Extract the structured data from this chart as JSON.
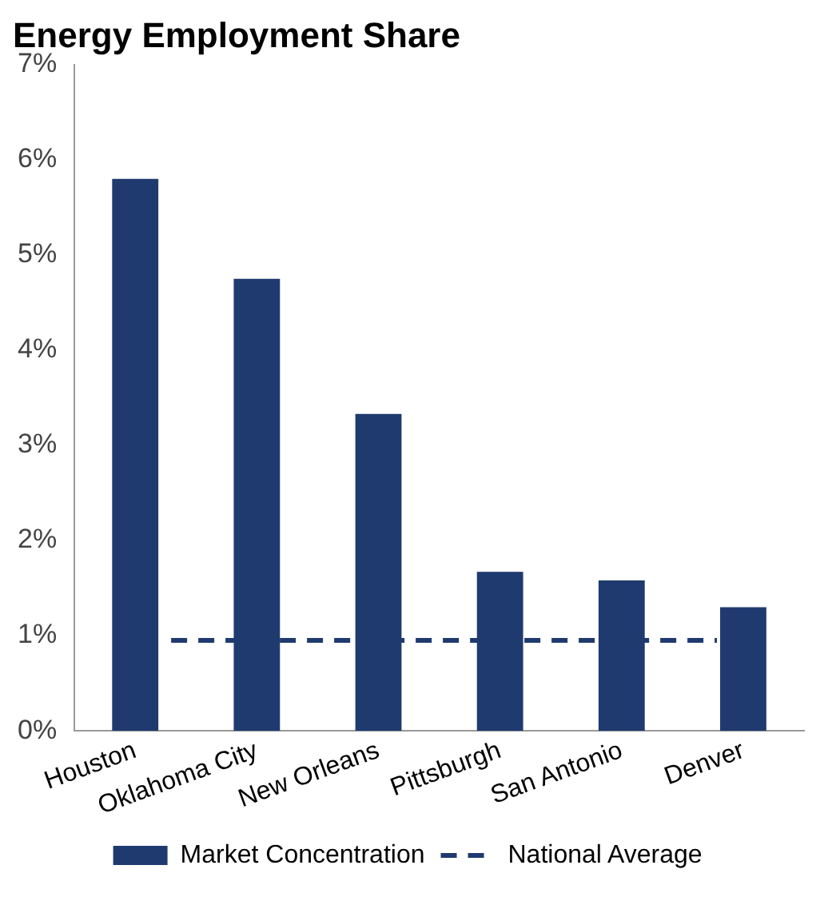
{
  "chart_data": {
    "type": "bar",
    "title": "Energy Employment Share",
    "categories": [
      "Houston",
      "Oklahoma City",
      "New Orleans",
      "Pittsburgh",
      "San Antonio",
      "Denver"
    ],
    "series": [
      {
        "name": "Market Concentration",
        "color": "#1f3a6e",
        "values": [
          5.8,
          4.75,
          3.33,
          1.67,
          1.58,
          1.3
        ]
      }
    ],
    "ref_lines": [
      {
        "axis": "y",
        "value": 0.95,
        "label": "National Average",
        "color": "#1f3a6e",
        "line_style": "dashed"
      }
    ],
    "ylim": [
      0,
      7
    ],
    "yticks": [
      {
        "value": 0,
        "label": "0%"
      },
      {
        "value": 1,
        "label": "1%"
      },
      {
        "value": 2,
        "label": "2%"
      },
      {
        "value": 3,
        "label": "3%"
      },
      {
        "value": 4,
        "label": "4%"
      },
      {
        "value": 5,
        "label": "5%"
      },
      {
        "value": 6,
        "label": "6%"
      },
      {
        "value": 7,
        "label": "7%"
      }
    ],
    "grid": false,
    "legend": "bottom"
  }
}
